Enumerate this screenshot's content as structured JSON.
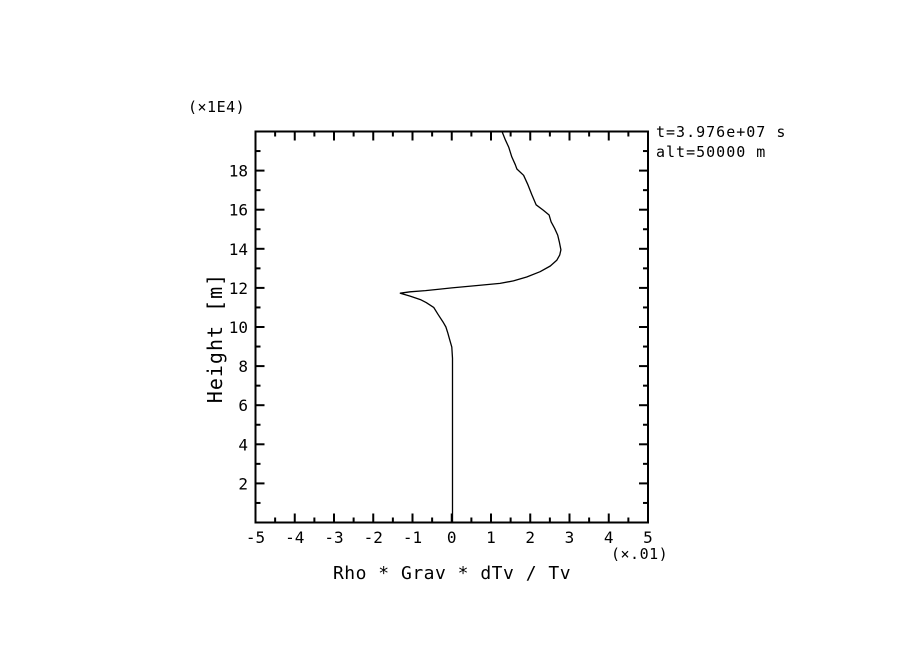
{
  "figure": {
    "background": "#ffffff",
    "line_color": "#000000"
  },
  "labels": {
    "y_scale_note": "(×1E4)",
    "x_scale_note": "(×.01)",
    "x_title": "Rho * Grav * dTv / Tv",
    "y_title": "Height [m]",
    "annotation_line1": "t=3.976e+07 s",
    "annotation_line2": "alt=50000 m"
  },
  "chart_data": {
    "type": "line",
    "title": "",
    "xlabel": "Rho * Grav * dTv / Tv",
    "ylabel": "Height [m]",
    "x_scale_note": "(×.01)",
    "y_scale_note": "(×1E4)",
    "annotations": [
      "t=3.976e+07 s",
      "alt=50000 m"
    ],
    "annotation_position": "top-right-outside",
    "grid": false,
    "legend": null,
    "xlim": [
      -5,
      5
    ],
    "ylim": [
      0,
      20
    ],
    "x_major_ticks": [
      -5,
      -4,
      -3,
      -2,
      -1,
      0,
      1,
      2,
      3,
      4,
      5
    ],
    "x_tick_labels": [
      "-5",
      "-4",
      "-3",
      "-2",
      "-1",
      "0",
      "1",
      "2",
      "3",
      "4",
      "5"
    ],
    "x_minor_ticks": [
      -4.5,
      -3.5,
      -2.5,
      -1.5,
      -0.5,
      0.5,
      1.5,
      2.5,
      3.5,
      4.5
    ],
    "y_major_ticks": [
      2,
      4,
      6,
      8,
      10,
      12,
      14,
      16,
      18
    ],
    "y_tick_labels": [
      "2",
      "4",
      "6",
      "8",
      "10",
      "12",
      "14",
      "16",
      "18"
    ],
    "y_minor_ticks": [
      1,
      3,
      5,
      7,
      9,
      11,
      13,
      15,
      17,
      19
    ],
    "tick_style": "inward-all-sides",
    "series": [
      {
        "name": "rho-grav-dTv-over-Tv-profile",
        "color": "#000000",
        "points": [
          [
            0.02,
            0.0
          ],
          [
            0.02,
            8.4
          ],
          [
            0.0,
            8.97
          ],
          [
            -0.06,
            9.4
          ],
          [
            -0.1,
            9.7
          ],
          [
            -0.15,
            10.0
          ],
          [
            -0.22,
            10.25
          ],
          [
            -0.35,
            10.65
          ],
          [
            -0.46,
            11.0
          ],
          [
            -0.65,
            11.25
          ],
          [
            -0.8,
            11.4
          ],
          [
            -1.06,
            11.58
          ],
          [
            -1.31,
            11.73
          ],
          [
            -1.06,
            11.8
          ],
          [
            -0.67,
            11.86
          ],
          [
            -0.3,
            11.94
          ],
          [
            0.0,
            12.0
          ],
          [
            0.62,
            12.12
          ],
          [
            1.23,
            12.23
          ],
          [
            1.57,
            12.36
          ],
          [
            1.91,
            12.56
          ],
          [
            2.25,
            12.83
          ],
          [
            2.51,
            13.12
          ],
          [
            2.68,
            13.42
          ],
          [
            2.75,
            13.68
          ],
          [
            2.78,
            13.95
          ],
          [
            2.74,
            14.36
          ],
          [
            2.7,
            14.7
          ],
          [
            2.62,
            15.05
          ],
          [
            2.53,
            15.38
          ],
          [
            2.48,
            15.73
          ],
          [
            2.33,
            15.98
          ],
          [
            2.15,
            16.25
          ],
          [
            2.04,
            16.77
          ],
          [
            1.94,
            17.28
          ],
          [
            1.83,
            17.76
          ],
          [
            1.66,
            18.08
          ],
          [
            1.62,
            18.3
          ],
          [
            1.53,
            18.7
          ],
          [
            1.45,
            19.2
          ],
          [
            1.36,
            19.6
          ],
          [
            1.28,
            20.0
          ]
        ]
      }
    ]
  }
}
